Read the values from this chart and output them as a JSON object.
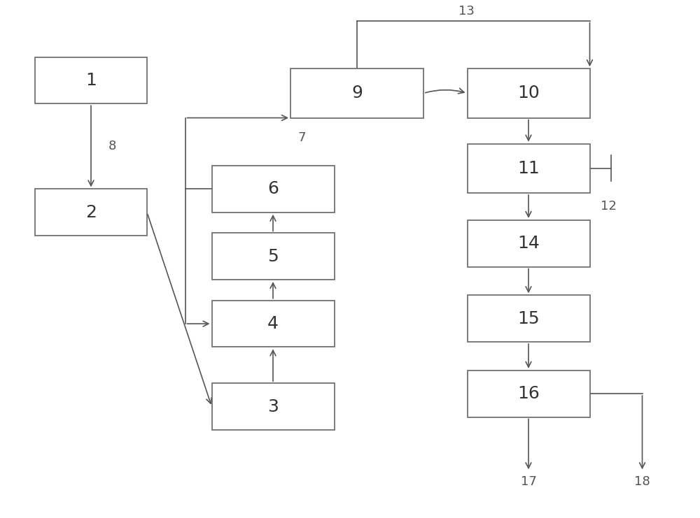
{
  "bg_color": "#ffffff",
  "box_ec": "#666666",
  "box_fc": "#ffffff",
  "arrow_color": "#555555",
  "text_color": "#555555",
  "lw": 1.2,
  "boxes": {
    "1": [
      0.13,
      0.845,
      0.16,
      0.09
    ],
    "2": [
      0.13,
      0.59,
      0.16,
      0.09
    ],
    "3": [
      0.39,
      0.215,
      0.175,
      0.09
    ],
    "4": [
      0.39,
      0.375,
      0.175,
      0.09
    ],
    "5": [
      0.39,
      0.505,
      0.175,
      0.09
    ],
    "6": [
      0.39,
      0.635,
      0.175,
      0.09
    ],
    "9": [
      0.51,
      0.82,
      0.19,
      0.095
    ],
    "10": [
      0.755,
      0.82,
      0.175,
      0.095
    ],
    "11": [
      0.755,
      0.675,
      0.175,
      0.095
    ],
    "14": [
      0.755,
      0.53,
      0.175,
      0.09
    ],
    "15": [
      0.755,
      0.385,
      0.175,
      0.09
    ],
    "16": [
      0.755,
      0.24,
      0.175,
      0.09
    ]
  },
  "label_fontsize": 18,
  "num_fontsize": 13,
  "figure_width": 10.0,
  "figure_height": 7.41,
  "dpi": 100
}
